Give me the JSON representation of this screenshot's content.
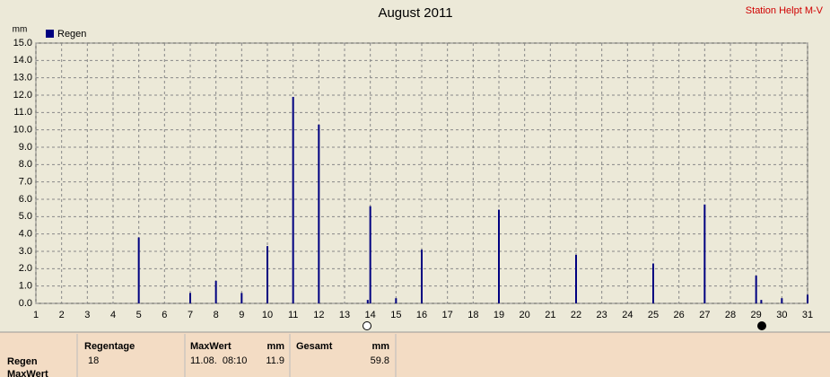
{
  "chart_data": {
    "type": "bar",
    "title": "August 2011",
    "station": "Station Helpt M-V",
    "y_unit": "mm",
    "series": [
      {
        "name": "Regen",
        "color": "#000080",
        "x": [
          5,
          7,
          8,
          9,
          10,
          11,
          12,
          13.9,
          14,
          15,
          16,
          19,
          22,
          25,
          27,
          29,
          29.2,
          30,
          31
        ],
        "values": [
          3.8,
          0.6,
          1.3,
          0.6,
          3.3,
          11.9,
          10.3,
          0.2,
          5.6,
          0.3,
          3.1,
          5.4,
          2.8,
          2.3,
          5.7,
          1.6,
          0.2,
          0.3,
          0.5
        ]
      }
    ],
    "xlim": [
      1,
      31
    ],
    "xticks": [
      1,
      2,
      3,
      4,
      5,
      6,
      7,
      8,
      9,
      10,
      11,
      12,
      13,
      14,
      15,
      16,
      17,
      18,
      19,
      20,
      21,
      22,
      23,
      24,
      25,
      26,
      27,
      28,
      29,
      30,
      31
    ],
    "ylim": [
      0,
      15
    ],
    "yticks": [
      {
        "value": 0,
        "label": "0.0"
      },
      {
        "value": 1,
        "label": "1.0"
      },
      {
        "value": 2,
        "label": "2.0"
      },
      {
        "value": 3,
        "label": "3.0"
      },
      {
        "value": 4,
        "label": "4.0"
      },
      {
        "value": 5,
        "label": "5.0"
      },
      {
        "value": 6,
        "label": "6.0"
      },
      {
        "value": 7,
        "label": "7.0"
      },
      {
        "value": 8,
        "label": "8.0"
      },
      {
        "value": 9,
        "label": "9.0"
      },
      {
        "value": 10,
        "label": "10.0"
      },
      {
        "value": 11,
        "label": "11.0"
      },
      {
        "value": 12,
        "label": "12.0"
      },
      {
        "value": 13,
        "label": "13.0"
      },
      {
        "value": 14,
        "label": "14.0"
      },
      {
        "value": 15,
        "label": "15.0"
      }
    ],
    "grid": true
  },
  "table": {
    "row_labels": [
      "Regen",
      "MaxWert"
    ],
    "headers": [
      "Regentage",
      "MaxWert",
      "mm",
      "Gesamt",
      "mm"
    ],
    "row": [
      "18",
      "11.08.  08:10",
      "11.9",
      "59.8"
    ]
  }
}
